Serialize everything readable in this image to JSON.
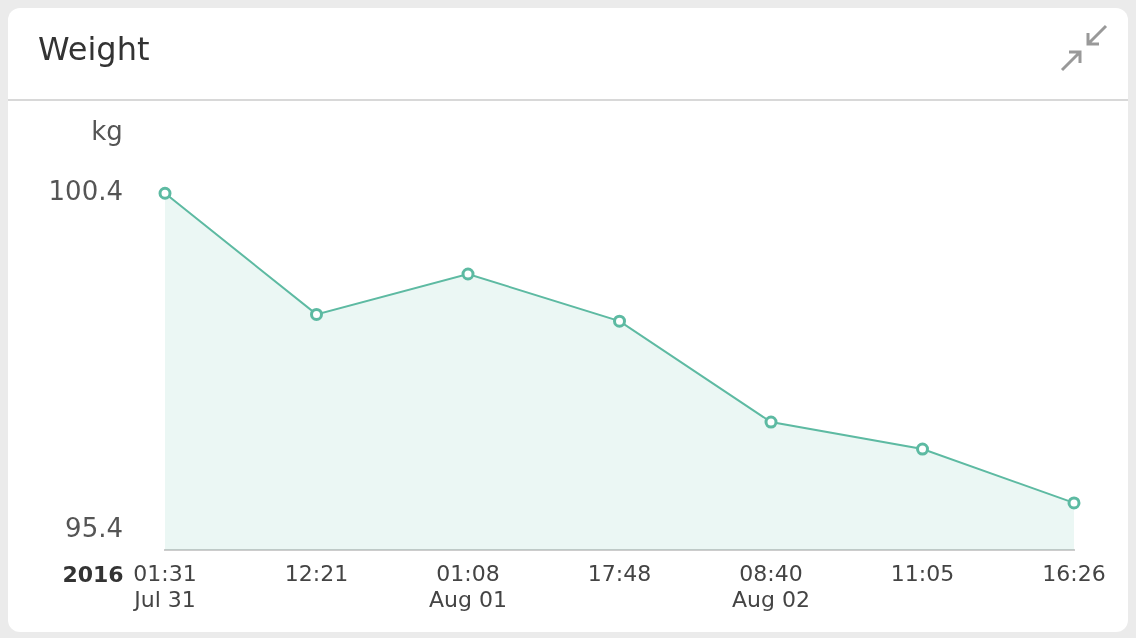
{
  "chart_data": {
    "type": "area",
    "title": "Weight",
    "ylabel": "kg",
    "xlabel": "2016",
    "categories": [
      "01:31\nJul 31",
      "12:21",
      "01:08\nAug 01",
      "17:48",
      "08:40\nAug 02",
      "11:05",
      "16:26"
    ],
    "series": [
      {
        "color": "#5dbaa2",
        "values": [
          100.4,
          98.6,
          99.2,
          98.5,
          97.0,
          96.6,
          95.8
        ]
      }
    ],
    "ylim": [
      95.1,
      101.8
    ],
    "yticks": [
      95.4,
      100.4
    ],
    "marker": "circle"
  }
}
